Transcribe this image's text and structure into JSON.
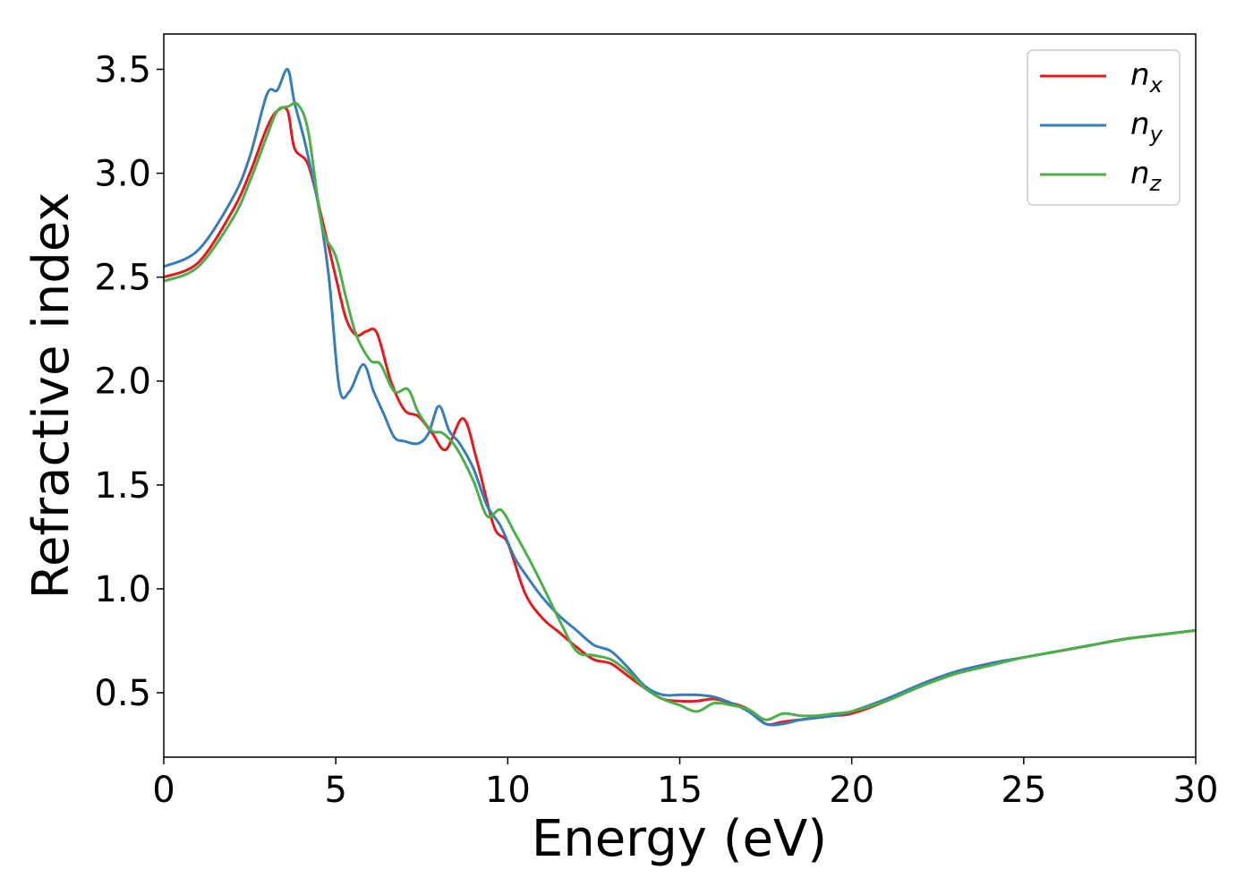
{
  "chart_data": {
    "type": "line",
    "title": "",
    "xlabel": "Energy (eV)",
    "ylabel": "Refractive index",
    "xlim": [
      0,
      30
    ],
    "ylim": [
      0.19,
      3.67
    ],
    "xticks": [
      0,
      5,
      10,
      15,
      20,
      25,
      30
    ],
    "yticks": [
      0.5,
      1.0,
      1.5,
      2.0,
      2.5,
      3.0,
      3.5
    ],
    "xtick_labels": [
      "0",
      "5",
      "10",
      "15",
      "20",
      "25",
      "30"
    ],
    "ytick_labels": [
      "0.5",
      "1.0",
      "1.5",
      "2.0",
      "2.5",
      "3.0",
      "3.5"
    ],
    "grid": false,
    "legend": "top-right",
    "series": [
      {
        "name": "n",
        "subscript": "x",
        "color": "#e41a1c",
        "x": [
          0,
          1,
          2,
          2.5,
          3,
          3.3,
          3.6,
          3.8,
          4.2,
          4.6,
          5.0,
          5.3,
          5.6,
          5.9,
          6.2,
          6.6,
          7.0,
          7.4,
          7.8,
          8.2,
          8.7,
          9.1,
          9.6,
          10.0,
          10.5,
          11.0,
          11.5,
          12.0,
          12.5,
          13.0,
          13.5,
          14.0,
          14.5,
          15.0,
          15.5,
          16.0,
          16.5,
          17.0,
          17.5,
          18.0,
          18.5,
          19.0,
          19.5,
          20.0,
          21.0,
          22.0,
          23.0,
          24.0,
          25.0,
          26.0,
          27.0,
          28.0,
          29.0,
          30.0
        ],
        "y": [
          2.5,
          2.57,
          2.82,
          3.0,
          3.22,
          3.3,
          3.3,
          3.12,
          3.04,
          2.78,
          2.5,
          2.3,
          2.22,
          2.24,
          2.23,
          2.0,
          1.86,
          1.83,
          1.75,
          1.67,
          1.82,
          1.62,
          1.3,
          1.22,
          0.98,
          0.86,
          0.79,
          0.72,
          0.66,
          0.64,
          0.58,
          0.52,
          0.47,
          0.46,
          0.46,
          0.47,
          0.45,
          0.42,
          0.35,
          0.36,
          0.37,
          0.38,
          0.39,
          0.4,
          0.46,
          0.54,
          0.6,
          0.64,
          0.67,
          0.7,
          0.73,
          0.76,
          0.78,
          0.8
        ]
      },
      {
        "name": "n",
        "subscript": "y",
        "color": "#377eb8",
        "x": [
          0,
          1,
          2,
          2.5,
          3,
          3.3,
          3.6,
          3.8,
          4.1,
          4.5,
          4.8,
          5.1,
          5.4,
          5.8,
          6.1,
          6.4,
          6.7,
          7.0,
          7.4,
          7.7,
          8.0,
          8.3,
          8.6,
          9.0,
          9.4,
          9.8,
          10.2,
          10.6,
          11.0,
          11.5,
          12.0,
          12.5,
          13.0,
          13.5,
          14.0,
          14.5,
          15.0,
          15.5,
          16.0,
          16.5,
          17.0,
          17.5,
          18.0,
          18.5,
          19.0,
          19.5,
          20.0,
          21.0,
          22.0,
          23.0,
          24.0,
          25.0,
          26.0,
          27.0,
          28.0,
          29.0,
          30.0
        ],
        "y": [
          2.55,
          2.63,
          2.88,
          3.08,
          3.38,
          3.4,
          3.5,
          3.34,
          3.15,
          2.84,
          2.5,
          1.97,
          1.95,
          2.08,
          1.95,
          1.84,
          1.73,
          1.71,
          1.7,
          1.75,
          1.88,
          1.76,
          1.7,
          1.58,
          1.4,
          1.3,
          1.15,
          1.05,
          0.96,
          0.87,
          0.8,
          0.73,
          0.7,
          0.62,
          0.53,
          0.49,
          0.49,
          0.49,
          0.48,
          0.45,
          0.41,
          0.35,
          0.35,
          0.37,
          0.38,
          0.39,
          0.41,
          0.47,
          0.54,
          0.6,
          0.64,
          0.67,
          0.7,
          0.73,
          0.76,
          0.78,
          0.8
        ]
      },
      {
        "name": "n",
        "subscript": "z",
        "color": "#4daf4a",
        "x": [
          0,
          1,
          2,
          2.5,
          3,
          3.3,
          3.6,
          3.9,
          4.2,
          4.6,
          5.0,
          5.3,
          5.6,
          6.0,
          6.3,
          6.7,
          7.1,
          7.4,
          7.8,
          8.1,
          8.5,
          9.0,
          9.4,
          9.8,
          10.2,
          10.6,
          11.0,
          11.5,
          12.0,
          12.5,
          13.0,
          13.5,
          14.0,
          14.5,
          15.0,
          15.5,
          16.0,
          16.5,
          17.0,
          17.5,
          18.0,
          18.5,
          19.0,
          19.5,
          20.0,
          21.0,
          22.0,
          23.0,
          24.0,
          25.0,
          26.0,
          27.0,
          28.0,
          29.0,
          30.0
        ],
        "y": [
          2.48,
          2.55,
          2.78,
          2.96,
          3.18,
          3.3,
          3.32,
          3.33,
          3.2,
          2.75,
          2.6,
          2.4,
          2.22,
          2.1,
          2.08,
          1.95,
          1.96,
          1.85,
          1.76,
          1.75,
          1.68,
          1.52,
          1.35,
          1.38,
          1.27,
          1.15,
          1.02,
          0.85,
          0.7,
          0.68,
          0.66,
          0.6,
          0.52,
          0.47,
          0.44,
          0.41,
          0.45,
          0.44,
          0.42,
          0.37,
          0.4,
          0.39,
          0.39,
          0.4,
          0.41,
          0.46,
          0.53,
          0.59,
          0.63,
          0.67,
          0.7,
          0.73,
          0.76,
          0.78,
          0.8
        ]
      }
    ]
  }
}
